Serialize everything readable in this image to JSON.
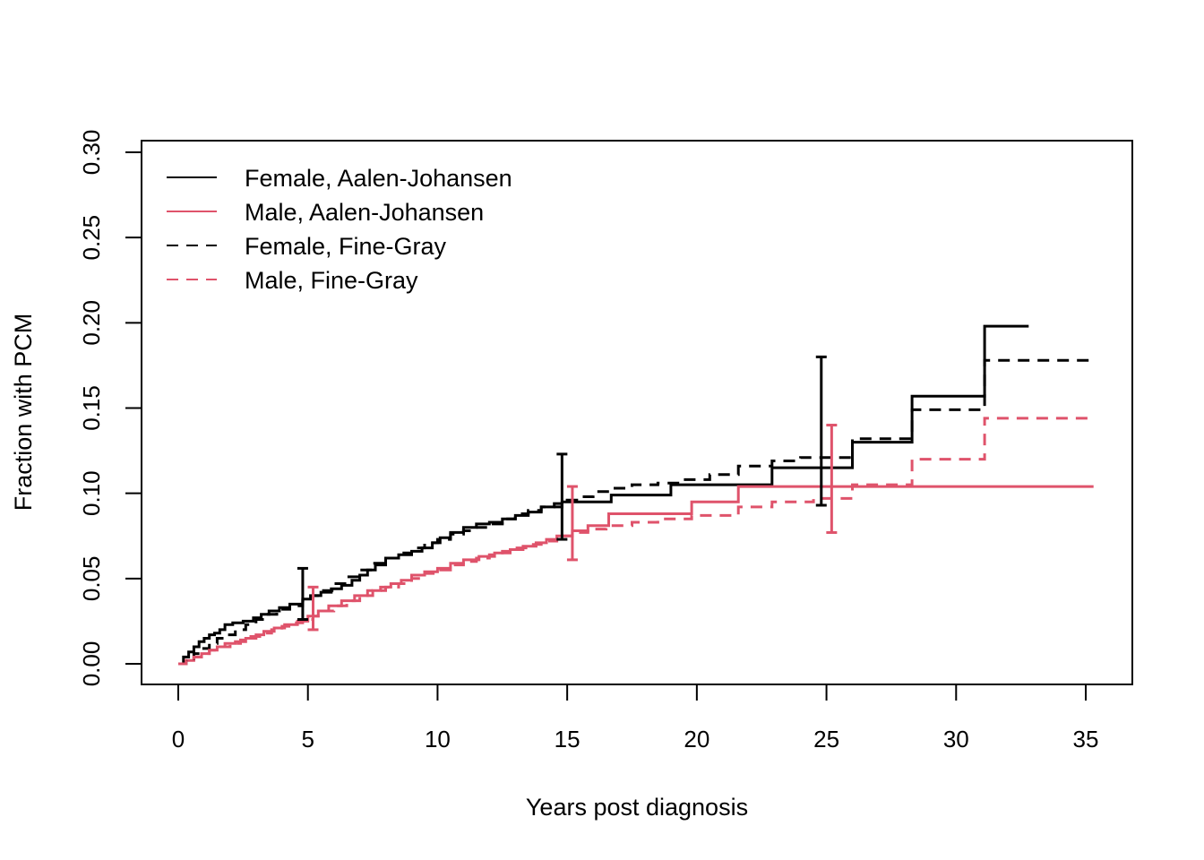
{
  "chart_data": {
    "type": "line",
    "title": "",
    "xlabel": "Years post diagnosis",
    "ylabel": "Fraction with PCM",
    "xlim": [
      0,
      35
    ],
    "ylim": [
      0,
      0.3
    ],
    "xticks": [
      "0",
      "5",
      "10",
      "15",
      "20",
      "25",
      "30",
      "35"
    ],
    "yticks": [
      "0.00",
      "0.05",
      "0.10",
      "0.15",
      "0.20",
      "0.25",
      "0.30"
    ],
    "grid": false,
    "legend_position": "top-left",
    "series": [
      {
        "name": "Female, Aalen-Johansen",
        "color": "#000000",
        "dash": "solid",
        "step": true,
        "x": [
          0,
          0.2,
          0.4,
          0.6,
          0.8,
          1.0,
          1.2,
          1.4,
          1.6,
          1.8,
          2.1,
          2.5,
          2.9,
          3.2,
          3.5,
          3.9,
          4.3,
          4.8,
          5.1,
          5.5,
          5.9,
          6.3,
          6.7,
          7.0,
          7.3,
          7.6,
          8.0,
          8.5,
          9.0,
          9.4,
          9.8,
          10.1,
          10.5,
          11.0,
          11.5,
          12.0,
          12.5,
          13.0,
          13.5,
          14.0,
          14.8,
          16.7,
          19.0,
          22.9,
          26.0,
          28.3,
          31.1,
          32.8
        ],
        "y": [
          0,
          0.004,
          0.007,
          0.01,
          0.013,
          0.015,
          0.017,
          0.018,
          0.02,
          0.023,
          0.024,
          0.025,
          0.027,
          0.029,
          0.031,
          0.033,
          0.035,
          0.038,
          0.04,
          0.042,
          0.044,
          0.046,
          0.049,
          0.052,
          0.055,
          0.058,
          0.062,
          0.064,
          0.066,
          0.068,
          0.071,
          0.074,
          0.077,
          0.08,
          0.082,
          0.083,
          0.085,
          0.087,
          0.089,
          0.092,
          0.095,
          0.099,
          0.105,
          0.115,
          0.13,
          0.157,
          0.198,
          0.198
        ]
      },
      {
        "name": "Male, Aalen-Johansen",
        "color": "#DF536B",
        "dash": "solid",
        "step": true,
        "x": [
          0,
          0.3,
          0.6,
          0.9,
          1.2,
          1.5,
          1.8,
          2.2,
          2.6,
          3.0,
          3.3,
          3.7,
          4.1,
          4.6,
          5.0,
          5.4,
          5.8,
          6.3,
          6.8,
          7.3,
          7.8,
          8.2,
          8.6,
          9.0,
          9.5,
          10.0,
          10.5,
          11.0,
          11.6,
          12.2,
          12.8,
          13.3,
          13.8,
          14.2,
          14.6,
          15.2,
          15.8,
          16.6,
          19.8,
          21.6,
          35.3
        ],
        "y": [
          0,
          0.002,
          0.004,
          0.006,
          0.008,
          0.01,
          0.012,
          0.013,
          0.015,
          0.017,
          0.019,
          0.021,
          0.023,
          0.025,
          0.028,
          0.031,
          0.034,
          0.037,
          0.04,
          0.043,
          0.045,
          0.047,
          0.049,
          0.052,
          0.054,
          0.056,
          0.059,
          0.061,
          0.063,
          0.065,
          0.067,
          0.069,
          0.071,
          0.073,
          0.075,
          0.078,
          0.081,
          0.088,
          0.095,
          0.104,
          0.104
        ]
      },
      {
        "name": "Female, Fine-Gray",
        "color": "#000000",
        "dash": "dashed",
        "step": true,
        "x": [
          0,
          0.3,
          0.6,
          0.9,
          1.2,
          1.5,
          1.8,
          2.2,
          2.6,
          3.0,
          3.4,
          3.8,
          4.3,
          4.8,
          5.2,
          5.6,
          6.0,
          6.5,
          7.0,
          7.5,
          8.0,
          8.5,
          9.0,
          9.5,
          10.0,
          10.5,
          11.0,
          11.5,
          12.0,
          12.5,
          13.0,
          13.5,
          14.0,
          14.5,
          15.0,
          15.5,
          16.0,
          16.7,
          17.5,
          18.5,
          19.5,
          20.5,
          21.6,
          22.9,
          24.0,
          26.0,
          28.3,
          31.1,
          35.3
        ],
        "y": [
          0,
          0.003,
          0.006,
          0.009,
          0.012,
          0.015,
          0.017,
          0.02,
          0.023,
          0.026,
          0.029,
          0.032,
          0.034,
          0.037,
          0.04,
          0.043,
          0.047,
          0.051,
          0.055,
          0.059,
          0.062,
          0.065,
          0.068,
          0.071,
          0.073,
          0.076,
          0.078,
          0.08,
          0.082,
          0.085,
          0.088,
          0.09,
          0.092,
          0.094,
          0.096,
          0.098,
          0.101,
          0.103,
          0.105,
          0.106,
          0.108,
          0.111,
          0.116,
          0.119,
          0.121,
          0.132,
          0.149,
          0.178,
          0.178
        ]
      },
      {
        "name": "Male, Fine-Gray",
        "color": "#DF536B",
        "dash": "dashed",
        "step": true,
        "x": [
          0,
          0.3,
          0.6,
          0.9,
          1.2,
          1.6,
          2.0,
          2.4,
          2.8,
          3.2,
          3.6,
          4.0,
          4.4,
          4.8,
          5.2,
          5.6,
          6.0,
          6.5,
          7.0,
          7.5,
          8.0,
          8.5,
          9.0,
          9.5,
          10.0,
          10.5,
          11.0,
          11.5,
          12.0,
          12.5,
          13.0,
          13.5,
          14.0,
          14.6,
          15.2,
          15.8,
          16.5,
          17.5,
          18.5,
          19.8,
          21.6,
          22.9,
          24.5,
          26.0,
          28.3,
          31.1,
          35.3
        ],
        "y": [
          0,
          0.002,
          0.004,
          0.006,
          0.008,
          0.01,
          0.012,
          0.014,
          0.016,
          0.018,
          0.02,
          0.022,
          0.024,
          0.026,
          0.028,
          0.031,
          0.034,
          0.037,
          0.04,
          0.043,
          0.045,
          0.047,
          0.05,
          0.053,
          0.055,
          0.058,
          0.06,
          0.062,
          0.064,
          0.066,
          0.068,
          0.07,
          0.072,
          0.075,
          0.077,
          0.079,
          0.081,
          0.083,
          0.085,
          0.087,
          0.092,
          0.095,
          0.097,
          0.105,
          0.12,
          0.144,
          0.144
        ]
      }
    ],
    "error_bars": [
      {
        "x": 4.8,
        "low": 0.026,
        "high": 0.056,
        "color": "#000000"
      },
      {
        "x": 5.2,
        "low": 0.02,
        "high": 0.045,
        "color": "#DF536B"
      },
      {
        "x": 14.8,
        "low": 0.073,
        "high": 0.123,
        "color": "#000000"
      },
      {
        "x": 15.2,
        "low": 0.061,
        "high": 0.104,
        "color": "#DF536B"
      },
      {
        "x": 24.8,
        "low": 0.093,
        "high": 0.18,
        "color": "#000000"
      },
      {
        "x": 25.2,
        "low": 0.077,
        "high": 0.14,
        "color": "#DF536B"
      }
    ]
  }
}
